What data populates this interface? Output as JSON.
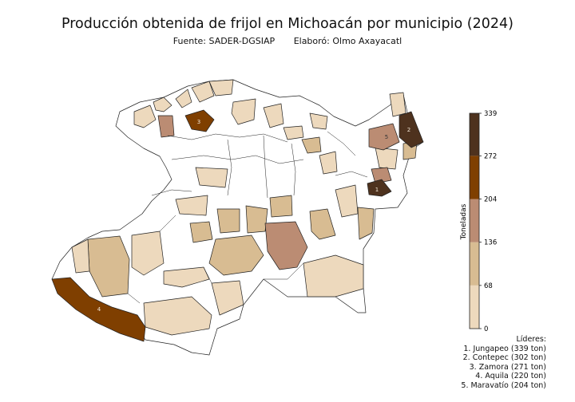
{
  "title": "Producción obtenida de frijol en Michoacán por municipio (2024)",
  "source": "Fuente: SADER-DGSIAP",
  "author": "Elaboró: Olmo Axayacatl",
  "colorbar": {
    "label": "Toneladas",
    "ticks": [
      "0",
      "68",
      "136",
      "204",
      "272",
      "339"
    ],
    "bins": [
      {
        "from": 0,
        "to": 68,
        "color": "#EDD9BD"
      },
      {
        "from": 68,
        "to": 136,
        "color": "#D8BC92"
      },
      {
        "from": 136,
        "to": 204,
        "color": "#BB8C73"
      },
      {
        "from": 204,
        "to": 272,
        "color": "#7F3F00"
      },
      {
        "from": 272,
        "to": 339,
        "color": "#4E321E"
      }
    ]
  },
  "leaders": {
    "heading": "Líderes:",
    "items": [
      {
        "rank": "1",
        "text": "1. Jungapeo (339 ton)",
        "tons": 339
      },
      {
        "rank": "2",
        "text": "2. Contepec (302 ton)",
        "tons": 302
      },
      {
        "rank": "3",
        "text": "3. Zamora (271 ton)",
        "tons": 271
      },
      {
        "rank": "4",
        "text": "4. Aquila (220 ton)",
        "tons": 220
      },
      {
        "rank": "5",
        "text": "5. Maravatío (204 ton)",
        "tons": 204
      }
    ]
  }
}
